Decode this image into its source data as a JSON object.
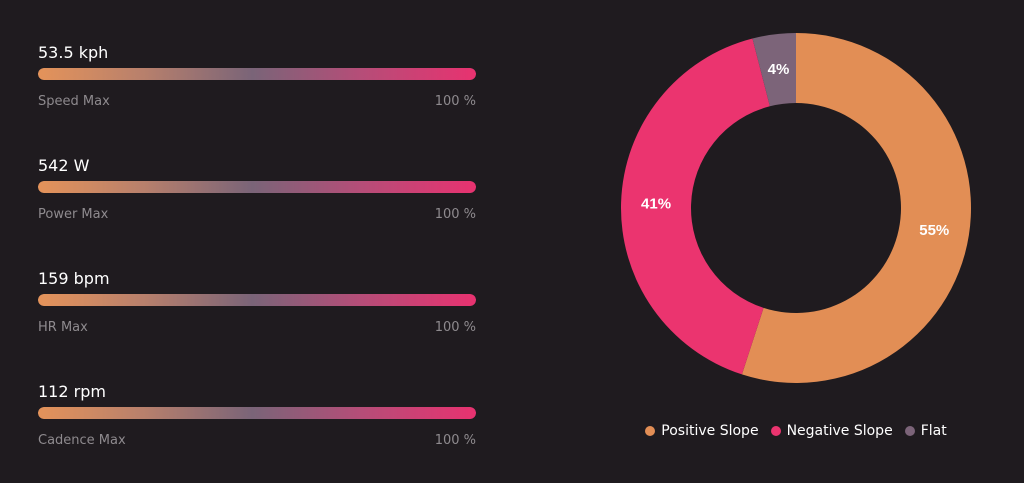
{
  "metrics": [
    {
      "value": "53.5 kph",
      "label": "Speed Max",
      "percent_text": "100 %",
      "fill_percent": 100
    },
    {
      "value": "542 W",
      "label": "Power Max",
      "percent_text": "100 %",
      "fill_percent": 100
    },
    {
      "value": "159 bpm",
      "label": "HR Max",
      "percent_text": "100 %",
      "fill_percent": 100
    },
    {
      "value": "112 rpm",
      "label": "Cadence Max",
      "percent_text": "100 %",
      "fill_percent": 100
    }
  ],
  "colors": {
    "background": "#1f1b1f",
    "positive": "#e28e55",
    "negative": "#eb346f",
    "flat": "#7c6479"
  },
  "chart_data": {
    "type": "pie",
    "subtype": "donut",
    "title": "",
    "categories": [
      "Positive Slope",
      "Negative Slope",
      "Flat"
    ],
    "values": [
      55,
      41,
      4
    ],
    "labels": [
      "55%",
      "41%",
      "4%"
    ],
    "colors": [
      "#e28e55",
      "#eb346f",
      "#7c6479"
    ],
    "legend": "bottom",
    "start_angle_deg": 0,
    "direction": "clockwise"
  }
}
